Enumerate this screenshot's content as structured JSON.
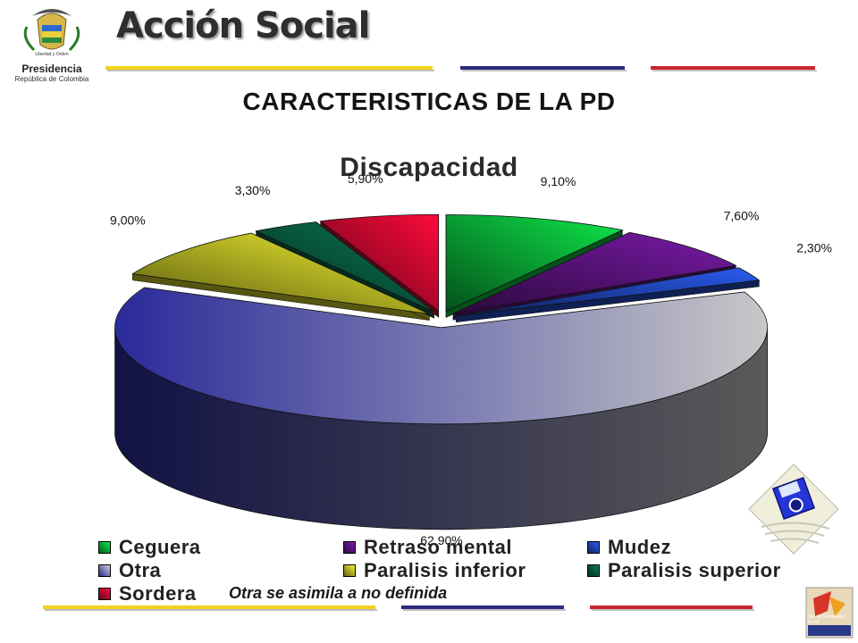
{
  "header": {
    "brand": "Acción Social",
    "emblem_motto": "Libertad y Orden",
    "presidency": "Presidencia",
    "presidency_sub": "República de Colombia",
    "accent_colors": [
      "#f2d21b",
      "#2f2a7e",
      "#c8262d"
    ]
  },
  "page_title": "CARACTERISTICAS DE LA PD",
  "chart_data": {
    "type": "pie",
    "title": "Discapacidad",
    "categories": [
      "Ceguera",
      "Retraso mental",
      "Mudez",
      "Otra",
      "Paralisis inferior",
      "Paralisis superior",
      "Sordera"
    ],
    "values": [
      9.1,
      7.6,
      2.3,
      62.9,
      9.0,
      3.3,
      5.9
    ],
    "value_labels": [
      "9,10%",
      "7,60%",
      "2,30%",
      "62,90%",
      "9,00%",
      "3,30%",
      "5,90%"
    ],
    "colors": [
      "#0de84a",
      "#7a1aa8",
      "#2a5cf0",
      "#c8c8c8",
      "#f5f530",
      "#0a7a55",
      "#ff0a3c"
    ],
    "legend_position": "bottom",
    "style": "3d-exploded",
    "footnote": "Otra se asimila a no definida"
  },
  "footer": {
    "network_logo": "Red de Solidaridad Social",
    "save_icon": "floppy-disk-icon"
  }
}
